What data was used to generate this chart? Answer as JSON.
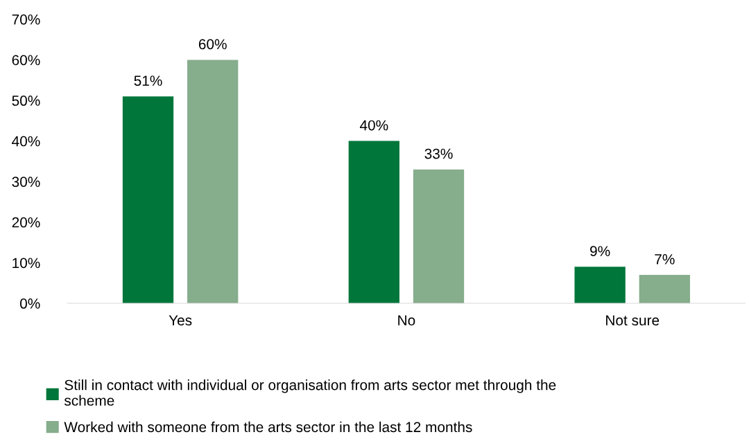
{
  "chart_data": {
    "type": "bar",
    "categories": [
      "Yes",
      "No",
      "Not sure"
    ],
    "series": [
      {
        "name": "Still in contact with individual or organisation from arts sector met through the scheme",
        "color": "#00763a",
        "values": [
          51,
          40,
          9
        ],
        "value_labels": [
          "51%",
          "40%",
          "9%"
        ]
      },
      {
        "name": "Worked with someone from the arts sector in the last 12 months",
        "color": "#86ad8c",
        "values": [
          60,
          33,
          7
        ],
        "value_labels": [
          "60%",
          "33%",
          "7%"
        ]
      }
    ],
    "ylim": [
      0,
      70
    ],
    "yticks": [
      {
        "value": 0,
        "label": "0%"
      },
      {
        "value": 10,
        "label": "10%"
      },
      {
        "value": 20,
        "label": "20%"
      },
      {
        "value": 30,
        "label": "30%"
      },
      {
        "value": 40,
        "label": "40%"
      },
      {
        "value": 50,
        "label": "50%"
      },
      {
        "value": 60,
        "label": "60%"
      },
      {
        "value": 70,
        "label": "70%"
      }
    ],
    "grid": false,
    "legend": "bottom"
  }
}
